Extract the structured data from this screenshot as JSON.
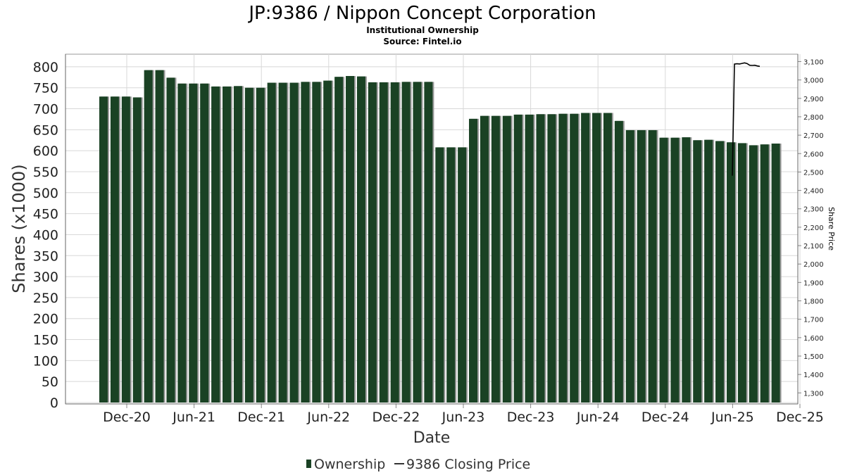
{
  "header": {
    "title": "JP:9386 / Nippon Concept Corporation",
    "subtitle1": "Institutional Ownership",
    "subtitle2": "Source: Fintel.io"
  },
  "legend": {
    "ownership_label": "Ownership",
    "price_label": "9386 Closing Price"
  },
  "colors": {
    "bar": "#1a4224",
    "bar_shadow": "#9a9a9a",
    "price_line": "#000000",
    "grid": "#d8d8d8"
  },
  "chart_data": {
    "type": "bar",
    "title": "JP:9386 / Nippon Concept Corporation",
    "xlabel": "Date",
    "ylabel": "Shares (x1000)",
    "y2label": "Share Price",
    "ylim": [
      0,
      830
    ],
    "y2lim": [
      1240,
      3140
    ],
    "grid": true,
    "legend_position": "bottom",
    "x_tick_labels": [
      "Dec-20",
      "Jun-21",
      "Dec-21",
      "Jun-22",
      "Dec-22",
      "Jun-23",
      "Dec-23",
      "Jun-24",
      "Dec-24",
      "Jun-25",
      "Dec-25"
    ],
    "y_ticks": [
      0,
      50,
      100,
      150,
      200,
      250,
      300,
      350,
      400,
      450,
      500,
      550,
      600,
      650,
      700,
      750,
      800
    ],
    "y2_ticks": [
      "1,300",
      "1,400",
      "1,500",
      "1,600",
      "1,700",
      "1,800",
      "1,900",
      "2,000",
      "2,100",
      "2,200",
      "2,300",
      "2,400",
      "2,500",
      "2,600",
      "2,700",
      "2,800",
      "2,900",
      "3,000",
      "3,100"
    ],
    "series": [
      {
        "name": "Ownership",
        "type": "bar",
        "values": [
          729,
          729,
          729,
          727,
          792,
          792,
          774,
          760,
          760,
          760,
          753,
          753,
          754,
          750,
          750,
          762,
          762,
          762,
          764,
          764,
          767,
          776,
          778,
          777,
          763,
          763,
          763,
          764,
          764,
          764,
          608,
          608,
          608,
          676,
          683,
          683,
          683,
          686,
          686,
          687,
          687,
          688,
          688,
          690,
          690,
          690,
          671,
          649,
          649,
          649,
          631,
          631,
          632,
          625,
          626,
          623,
          620,
          618,
          613,
          615,
          617
        ]
      },
      {
        "name": "9386 Closing Price",
        "type": "line",
        "values": [
          3086,
          3088,
          3087,
          3090,
          3093,
          3089,
          3080,
          3079,
          3080,
          3076,
          3074
        ]
      }
    ]
  }
}
